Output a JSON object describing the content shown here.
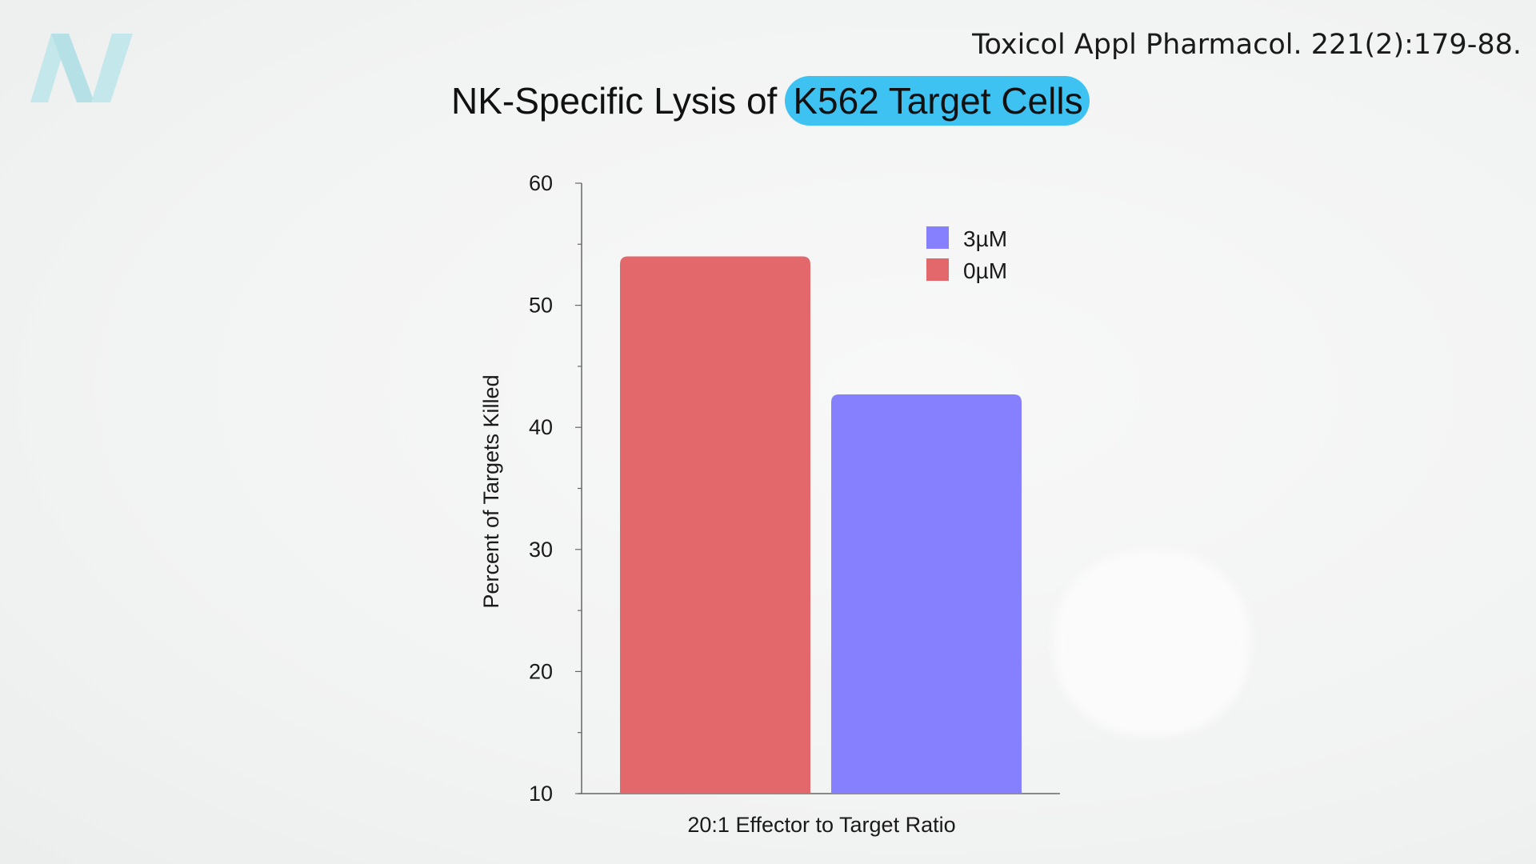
{
  "citation": "Toxicol Appl Pharmacol. 221(2):179-88.",
  "logo": {
    "icon": "stylized-N-logo",
    "color": "#bfe6ea"
  },
  "title": {
    "prefix": "NK-Specific Lysis of",
    "highlight": "K562 Target Cells",
    "highlight_color": "#3ec2f2"
  },
  "chart_data": {
    "type": "bar",
    "categories": [
      "20:1 Effector to Target Ratio"
    ],
    "series": [
      {
        "name": "0µM",
        "values": [
          54
        ],
        "color": "#e3686b"
      },
      {
        "name": "3µM",
        "values": [
          42.7
        ],
        "color": "#867ffe"
      }
    ],
    "xlabel": "20:1 Effector to Target Ratio",
    "ylabel": "Percent of Targets Killed",
    "ylim": [
      10,
      60
    ],
    "yticks": [
      10,
      20,
      30,
      40,
      50,
      60
    ],
    "grid": false,
    "legend": {
      "position": "top-right",
      "order": [
        "3µM",
        "0µM"
      ]
    }
  }
}
